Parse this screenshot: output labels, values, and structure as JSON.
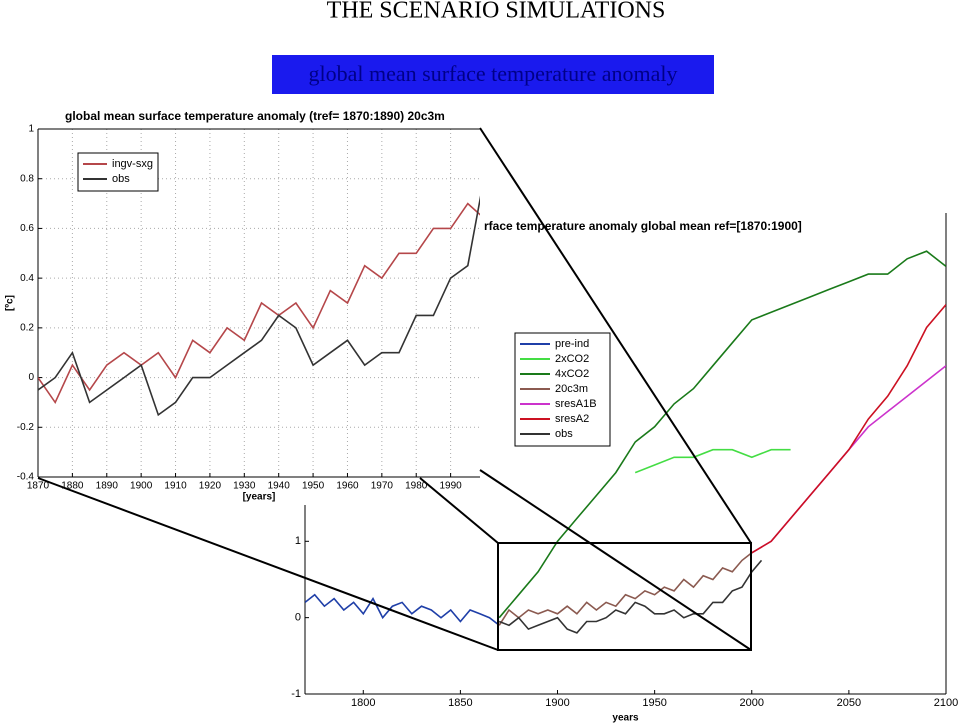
{
  "slide": {
    "title": "THE SCENARIO SIMULATIONS",
    "subtitle": "global mean surface temperature anomaly"
  },
  "chart_data": [
    {
      "type": "line",
      "title": "rface temperature anomaly global mean ref=[1870:1900]",
      "xlabel": "years",
      "xlim": [
        1770,
        2100
      ],
      "ylim": [
        -1,
        5.3
      ],
      "xticks": [
        1800,
        1850,
        1900,
        1950,
        2000,
        2050,
        2100
      ],
      "yticks": [
        -1,
        0,
        1
      ],
      "grid": false,
      "legend": "center left",
      "series": [
        {
          "name": "pre-ind",
          "color": "#1f3fa8",
          "x": [
            1770,
            1775,
            1780,
            1785,
            1790,
            1795,
            1800,
            1805,
            1810,
            1815,
            1820,
            1825,
            1830,
            1835,
            1840,
            1845,
            1850,
            1855,
            1860,
            1865,
            1870
          ],
          "values": [
            0.2,
            0.3,
            0.15,
            0.25,
            0.1,
            0.2,
            0.05,
            0.25,
            0.0,
            0.15,
            0.2,
            0.05,
            0.15,
            0.1,
            0.0,
            0.1,
            -0.05,
            0.1,
            0.05,
            0.0,
            -0.1
          ]
        },
        {
          "name": "2xCO2",
          "color": "#44dd44",
          "x": [
            1940,
            1950,
            1960,
            1970,
            1980,
            1990,
            2000,
            2010,
            2020
          ],
          "values": [
            1.9,
            2.0,
            2.1,
            2.1,
            2.2,
            2.2,
            2.1,
            2.2,
            2.2
          ]
        },
        {
          "name": "4xCO2",
          "color": "#1a7a1a",
          "x": [
            1870,
            1880,
            1890,
            1900,
            1910,
            1920,
            1930,
            1940,
            1950,
            1960,
            1970,
            1980,
            1990,
            2000,
            2010,
            2020,
            2030,
            2040,
            2050,
            2060,
            2070,
            2080,
            2090,
            2100
          ],
          "values": [
            0.0,
            0.3,
            0.6,
            1.0,
            1.3,
            1.6,
            1.9,
            2.3,
            2.5,
            2.8,
            3.0,
            3.3,
            3.6,
            3.9,
            4.0,
            4.1,
            4.2,
            4.3,
            4.4,
            4.5,
            4.5,
            4.7,
            4.8,
            4.6
          ]
        },
        {
          "name": "20c3m",
          "color": "#8b5a50",
          "x": [
            1870,
            1875,
            1880,
            1885,
            1890,
            1895,
            1900,
            1905,
            1910,
            1915,
            1920,
            1925,
            1930,
            1935,
            1940,
            1945,
            1950,
            1955,
            1960,
            1965,
            1970,
            1975,
            1980,
            1985,
            1990,
            1995,
            2000
          ],
          "values": [
            -0.1,
            0.1,
            0.0,
            0.1,
            0.05,
            0.1,
            0.05,
            0.15,
            0.05,
            0.2,
            0.1,
            0.2,
            0.15,
            0.3,
            0.25,
            0.35,
            0.3,
            0.4,
            0.35,
            0.5,
            0.4,
            0.55,
            0.5,
            0.65,
            0.6,
            0.75,
            0.85
          ]
        },
        {
          "name": "sresA1B",
          "color": "#cc33cc",
          "x": [
            2000,
            2010,
            2020,
            2030,
            2040,
            2050,
            2060,
            2070,
            2080,
            2090,
            2100
          ],
          "values": [
            0.85,
            1.0,
            1.3,
            1.6,
            1.9,
            2.2,
            2.5,
            2.7,
            2.9,
            3.1,
            3.3
          ]
        },
        {
          "name": "sresA2",
          "color": "#cc1122",
          "x": [
            2000,
            2010,
            2020,
            2030,
            2040,
            2050,
            2060,
            2070,
            2080,
            2090,
            2100
          ],
          "values": [
            0.85,
            1.0,
            1.3,
            1.6,
            1.9,
            2.2,
            2.6,
            2.9,
            3.3,
            3.8,
            4.1
          ]
        },
        {
          "name": "obs",
          "color": "#333333",
          "x": [
            1870,
            1875,
            1880,
            1885,
            1890,
            1895,
            1900,
            1905,
            1910,
            1915,
            1920,
            1925,
            1930,
            1935,
            1940,
            1945,
            1950,
            1955,
            1960,
            1965,
            1970,
            1975,
            1980,
            1985,
            1990,
            1995,
            2000,
            2005
          ],
          "values": [
            -0.05,
            -0.1,
            0.0,
            -0.15,
            -0.1,
            -0.05,
            0.0,
            -0.15,
            -0.2,
            -0.05,
            -0.05,
            0.0,
            0.1,
            0.05,
            0.2,
            0.15,
            0.05,
            0.05,
            0.1,
            0.0,
            0.05,
            0.05,
            0.2,
            0.2,
            0.35,
            0.4,
            0.6,
            0.75
          ]
        }
      ]
    },
    {
      "type": "line",
      "title": "global mean surface temperature anomaly (tref= 1870:1890) 20c3m",
      "xlabel": "[years]",
      "ylabel": "[ºc]",
      "xlim": [
        1870,
        2000
      ],
      "ylim": [
        -0.4,
        1
      ],
      "xticks": [
        1870,
        1880,
        1890,
        1900,
        1910,
        1920,
        1930,
        1940,
        1950,
        1960,
        1970,
        1980,
        1990
      ],
      "yticks": [
        -0.4,
        -0.2,
        0,
        0.2,
        0.4,
        0.6,
        0.8,
        1
      ],
      "grid": true,
      "legend": "upper left",
      "series": [
        {
          "name": "ingv-sxg",
          "color": "#b5474a",
          "x": [
            1870,
            1875,
            1880,
            1885,
            1890,
            1895,
            1900,
            1905,
            1910,
            1915,
            1920,
            1925,
            1930,
            1935,
            1940,
            1945,
            1950,
            1955,
            1960,
            1965,
            1970,
            1975,
            1980,
            1985,
            1990,
            1995,
            1999
          ],
          "values": [
            0.0,
            -0.1,
            0.05,
            -0.05,
            0.05,
            0.1,
            0.05,
            0.1,
            0.0,
            0.15,
            0.1,
            0.2,
            0.15,
            0.3,
            0.25,
            0.3,
            0.2,
            0.35,
            0.3,
            0.45,
            0.4,
            0.5,
            0.5,
            0.6,
            0.6,
            0.7,
            0.65
          ]
        },
        {
          "name": "obs",
          "color": "#333333",
          "x": [
            1870,
            1875,
            1880,
            1885,
            1890,
            1895,
            1900,
            1905,
            1910,
            1915,
            1920,
            1925,
            1930,
            1935,
            1940,
            1945,
            1950,
            1955,
            1960,
            1965,
            1970,
            1975,
            1980,
            1985,
            1990,
            1995,
            1999
          ],
          "values": [
            -0.05,
            0.0,
            0.1,
            -0.1,
            -0.05,
            0.0,
            0.05,
            -0.15,
            -0.1,
            0.0,
            0.0,
            0.05,
            0.1,
            0.15,
            0.25,
            0.2,
            0.05,
            0.1,
            0.15,
            0.05,
            0.1,
            0.1,
            0.25,
            0.25,
            0.4,
            0.45,
            0.75
          ]
        }
      ]
    }
  ]
}
